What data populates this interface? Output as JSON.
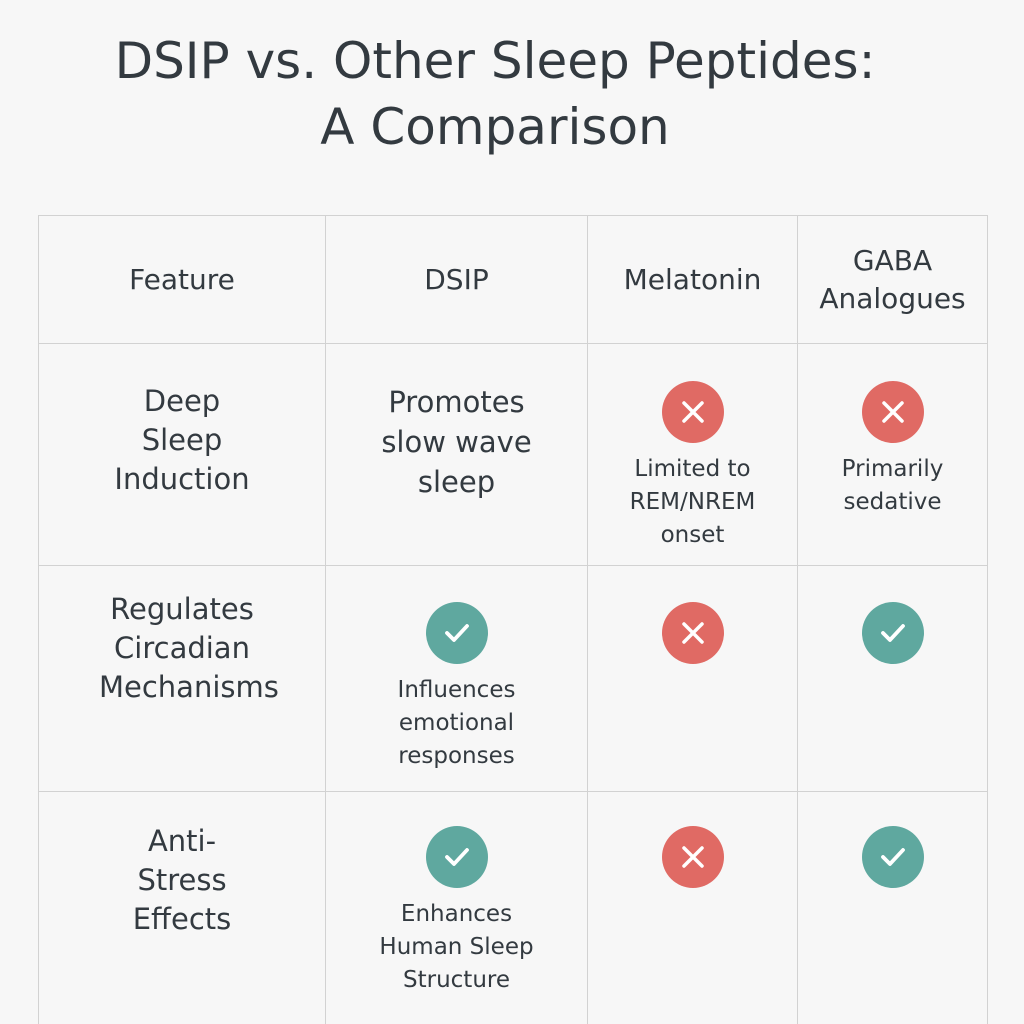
{
  "title": {
    "line1": "DSIP vs. Other Sleep Peptides:",
    "line2": "A Comparison"
  },
  "colors": {
    "cross": "#e06a64",
    "check": "#5fa89f",
    "text": "#333a40",
    "grid": "#d2d2d2"
  },
  "table": {
    "headers": [
      "Feature",
      "DSIP",
      "Melatonin",
      "GABA Analogues"
    ],
    "rows": [
      {
        "feature": "Deep Sleep Induction",
        "dsip": {
          "icon": "",
          "text": "Promotes slow wave sleep"
        },
        "melatonin": {
          "icon": "cross-icon",
          "text": "Limited to REM/NREM onset"
        },
        "gaba": {
          "icon": "cross-icon",
          "text": "Primarily sedative"
        }
      },
      {
        "feature": "Regulates Circadian Mechanisms",
        "dsip": {
          "icon": "check-icon",
          "text": "Influences emotional responses"
        },
        "melatonin": {
          "icon": "cross-icon",
          "text": ""
        },
        "gaba": {
          "icon": "check-icon",
          "text": ""
        }
      },
      {
        "feature": "Anti-Stress Effects",
        "dsip": {
          "icon": "check-icon",
          "text": "Enhances Human Sleep Structure"
        },
        "melatonin": {
          "icon": "cross-icon",
          "text": ""
        },
        "gaba": {
          "icon": "check-icon",
          "text": ""
        }
      }
    ]
  }
}
